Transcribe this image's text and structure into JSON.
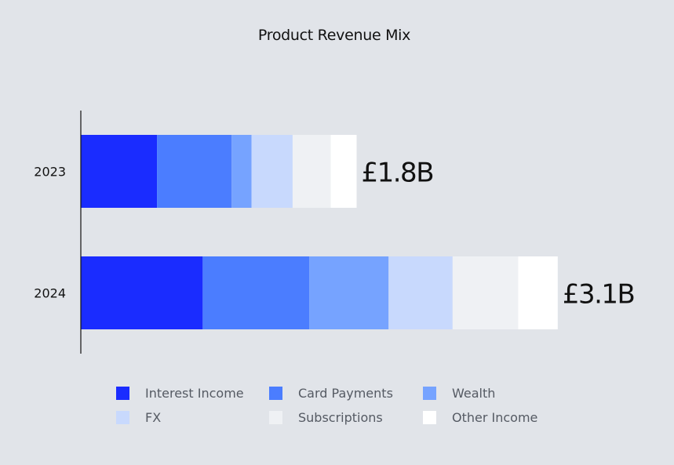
{
  "chart_data": {
    "type": "bar",
    "orientation": "horizontal",
    "stacked": true,
    "title": "Product Revenue Mix",
    "categories": [
      "2023",
      "2024"
    ],
    "totals_display": [
      "£1.8B",
      "£3.1B"
    ],
    "unit": "£B",
    "series": [
      {
        "name": "Interest Income",
        "color": "#1a2cff",
        "values": [
          0.5,
          0.8
        ]
      },
      {
        "name": "Card Payments",
        "color": "#4b7dff",
        "values": [
          0.49,
          0.7
        ]
      },
      {
        "name": "Wealth",
        "color": "#76a3ff",
        "values": [
          0.13,
          0.52
        ]
      },
      {
        "name": "FX",
        "color": "#c8d9fd",
        "values": [
          0.27,
          0.42
        ]
      },
      {
        "name": "Subscriptions",
        "color": "#eff1f4",
        "values": [
          0.25,
          0.43
        ]
      },
      {
        "name": "Other Income",
        "color": "#ffffff",
        "values": [
          0.17,
          0.26
        ]
      }
    ],
    "xlim": [
      0,
      3.1
    ],
    "grid": false,
    "legend": "bottom"
  }
}
